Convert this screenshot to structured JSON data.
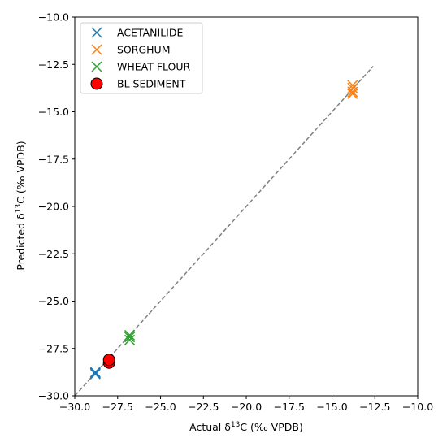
{
  "chart_data": {
    "type": "scatter",
    "xlabel_main": "Actual δ",
    "xlabel_sup": "13",
    "xlabel_rest": "C (‰ VPDB)",
    "ylabel_main": "Predicted δ",
    "ylabel_sup": "13",
    "ylabel_rest": "C (‰ VPDB)",
    "xlim": [
      -30.0,
      -10.0
    ],
    "ylim": [
      -30.0,
      -10.0
    ],
    "xticks": [
      "−30.0",
      "−27.5",
      "−25.0",
      "−22.5",
      "−20.0",
      "−17.5",
      "−15.0",
      "−12.5",
      "−10.0"
    ],
    "yticks": [
      "−30.0",
      "−27.5",
      "−25.0",
      "−22.5",
      "−20.0",
      "−17.5",
      "−15.0",
      "−12.5",
      "−10.0"
    ],
    "grid": false,
    "legend_position": "upper-left",
    "reference_line": {
      "x": [
        -30.0,
        -12.6
      ],
      "y": [
        -30.0,
        -12.6
      ],
      "style": "dashed",
      "color": "#808080"
    },
    "series": [
      {
        "name": "ACETANILIDE",
        "marker": "x",
        "color": "#1f77b4",
        "points": [
          [
            -28.8,
            -28.75
          ],
          [
            -28.8,
            -28.85
          ],
          [
            -28.8,
            -28.8
          ]
        ]
      },
      {
        "name": "SORGHUM",
        "marker": "x",
        "color": "#ff7f0e",
        "points": [
          [
            -13.8,
            -13.6
          ],
          [
            -13.8,
            -13.75
          ],
          [
            -13.8,
            -13.95
          ],
          [
            -13.8,
            -14.05
          ]
        ]
      },
      {
        "name": "WHEAT FLOUR",
        "marker": "x",
        "color": "#2ca02c",
        "points": [
          [
            -26.8,
            -26.8
          ],
          [
            -26.8,
            -26.9
          ],
          [
            -26.8,
            -27.05
          ]
        ]
      },
      {
        "name": "BL SEDIMENT",
        "marker": "o",
        "color": "#ff0000",
        "points": [
          [
            -28.0,
            -28.25
          ],
          [
            -28.0,
            -28.1
          ]
        ]
      }
    ]
  }
}
